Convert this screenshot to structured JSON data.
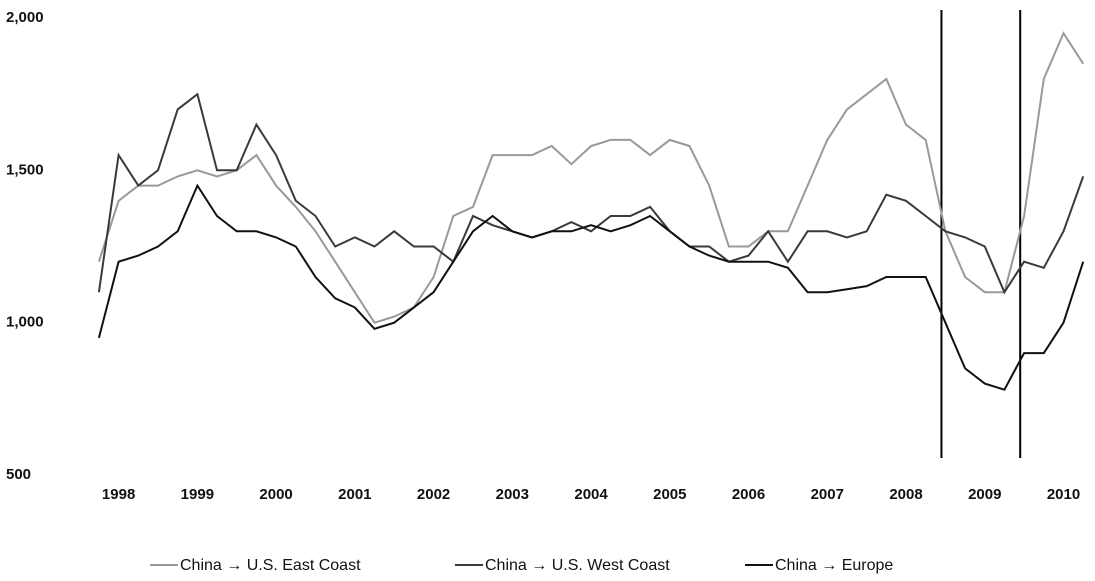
{
  "chart_data": {
    "type": "line",
    "x": [
      1998.25,
      1998.5,
      1998.75,
      1999,
      1999.25,
      1999.5,
      1999.75,
      2000,
      2000.25,
      2000.5,
      2000.75,
      2001,
      2001.25,
      2001.5,
      2001.75,
      2002,
      2002.25,
      2002.5,
      2002.75,
      2003,
      2003.25,
      2003.5,
      2003.75,
      2004,
      2004.25,
      2004.5,
      2004.75,
      2005,
      2005.25,
      2005.5,
      2005.75,
      2006,
      2006.25,
      2006.5,
      2006.75,
      2007,
      2007.25,
      2007.5,
      2007.75,
      2008,
      2008.25,
      2008.5,
      2008.75,
      2009,
      2009.25,
      2009.5,
      2009.75,
      2010,
      2010.25,
      2010.5,
      2010.75
    ],
    "series": [
      {
        "name": "China → U.S. East Coast",
        "color": "#999999",
        "values": [
          1200,
          1400,
          1450,
          1450,
          1480,
          1500,
          1480,
          1500,
          1550,
          1450,
          1380,
          1300,
          1200,
          1100,
          1000,
          1020,
          1050,
          1150,
          1350,
          1380,
          1550,
          1550,
          1550,
          1580,
          1520,
          1580,
          1600,
          1600,
          1550,
          1600,
          1580,
          1450,
          1250,
          1250,
          1300,
          1300,
          1450,
          1600,
          1700,
          1750,
          1800,
          1650,
          1600,
          1300,
          1150,
          1100,
          1100,
          1350,
          1800,
          1950,
          1850
        ]
      },
      {
        "name": "China → U.S. West Coast",
        "color": "#3a3a3a",
        "values": [
          1100,
          1550,
          1450,
          1500,
          1700,
          1750,
          1500,
          1500,
          1650,
          1550,
          1400,
          1350,
          1250,
          1280,
          1250,
          1300,
          1250,
          1250,
          1200,
          1350,
          1320,
          1300,
          1280,
          1300,
          1330,
          1300,
          1350,
          1350,
          1380,
          1300,
          1250,
          1250,
          1200,
          1220,
          1300,
          1200,
          1300,
          1300,
          1280,
          1300,
          1420,
          1400,
          1350,
          1300,
          1280,
          1250,
          1100,
          1200,
          1180,
          1300,
          1480
        ]
      },
      {
        "name": "China → Europe",
        "color": "#111111",
        "values": [
          950,
          1200,
          1220,
          1250,
          1300,
          1450,
          1350,
          1300,
          1300,
          1280,
          1250,
          1150,
          1080,
          1050,
          980,
          1000,
          1050,
          1100,
          1200,
          1300,
          1350,
          1300,
          1280,
          1300,
          1300,
          1320,
          1300,
          1320,
          1350,
          1300,
          1250,
          1220,
          1200,
          1200,
          1200,
          1180,
          1100,
          1100,
          1110,
          1120,
          1150,
          1150,
          1150,
          1000,
          850,
          800,
          780,
          900,
          900,
          1000,
          1200
        ]
      }
    ],
    "xlim": [
      1998.2,
      2010.9
    ],
    "xticks": [
      {
        "value": 1998.5,
        "label": "1998"
      },
      {
        "value": 1999.5,
        "label": "1999"
      },
      {
        "value": 2000.5,
        "label": "2000"
      },
      {
        "value": 2001.5,
        "label": "2001"
      },
      {
        "value": 2002.5,
        "label": "2002"
      },
      {
        "value": 2003.5,
        "label": "2003"
      },
      {
        "value": 2004.5,
        "label": "2004"
      },
      {
        "value": 2005.5,
        "label": "2005"
      },
      {
        "value": 2006.5,
        "label": "2006"
      },
      {
        "value": 2007.5,
        "label": "2007"
      },
      {
        "value": 2008.5,
        "label": "2008"
      },
      {
        "value": 2009.5,
        "label": "2009"
      },
      {
        "value": 2010.5,
        "label": "2010"
      }
    ],
    "ylim": [
      500,
      2000
    ],
    "yticks": [
      500,
      {
        "value": 1000,
        "label": "1,000"
      },
      {
        "value": 1500,
        "label": "1,500"
      },
      {
        "value": 2000,
        "label": "2,000"
      }
    ],
    "vlines": [
      2008.95,
      2009.95
    ],
    "grid": false
  }
}
